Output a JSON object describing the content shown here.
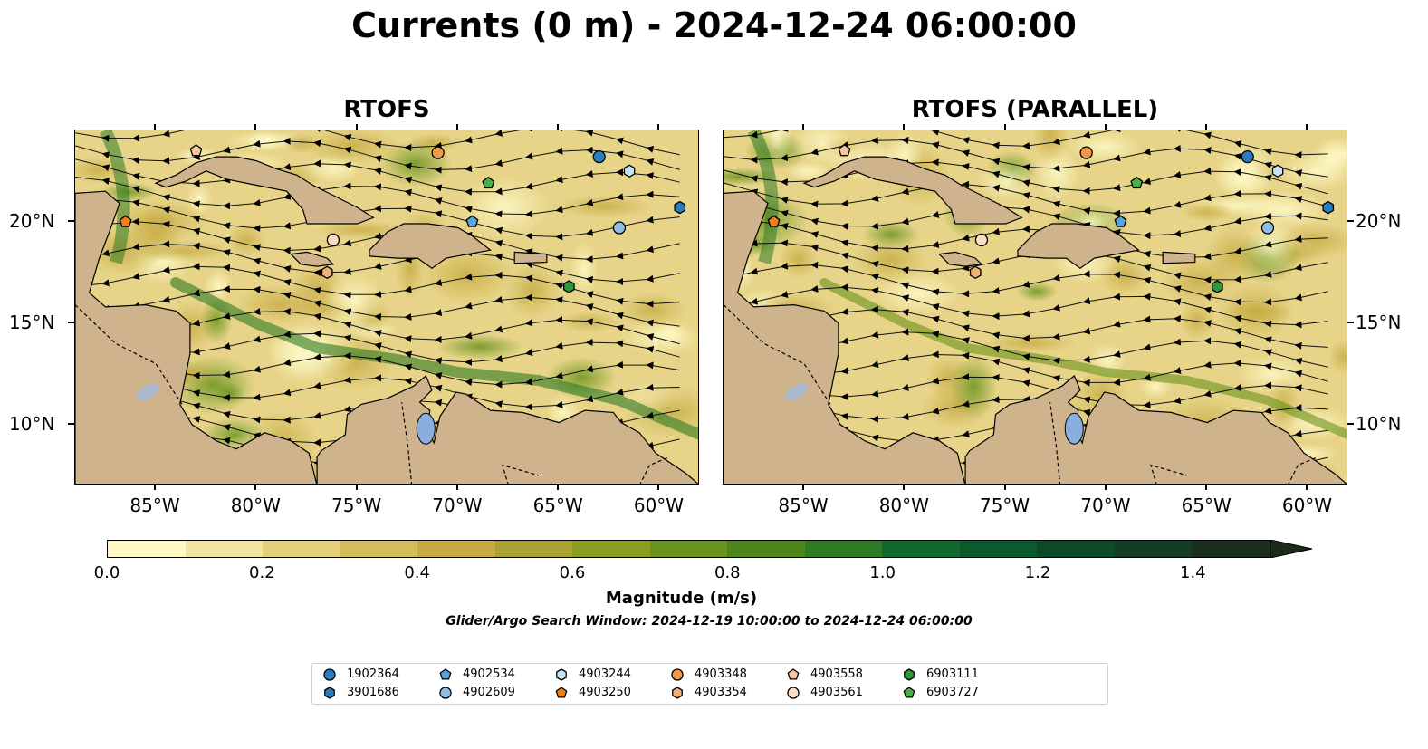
{
  "title": "Currents (0 m) - 2024-12-24 06:00:00",
  "panels": [
    {
      "title": "RTOFS"
    },
    {
      "title": "RTOFS (PARALLEL)"
    }
  ],
  "axes": {
    "x_ticks": [
      "85°W",
      "80°W",
      "75°W",
      "70°W",
      "65°W",
      "60°W"
    ],
    "y_ticks": [
      "20°N",
      "15°N",
      "10°N"
    ]
  },
  "colorbar": {
    "label": "Magnitude (m/s)",
    "ticks": [
      "0.0",
      "0.2",
      "0.4",
      "0.6",
      "0.8",
      "1.0",
      "1.2",
      "1.4"
    ],
    "colors": [
      "#fdf8c4",
      "#f1e3a0",
      "#e3cf7a",
      "#d4bc5a",
      "#c5ab42",
      "#a9a232",
      "#8a9f22",
      "#6a931e",
      "#4d861d",
      "#2f7a25",
      "#13682e",
      "#0b5a2d",
      "#0c4a28",
      "#133d24",
      "#1a2f1f",
      "#1b2a1a"
    ]
  },
  "search_window": "Glider/Argo Search Window: 2024-12-19 10:00:00 to 2024-12-24 06:00:00",
  "legend": [
    {
      "id": "1902364",
      "marker": "circle",
      "color": "#2b7bbf"
    },
    {
      "id": "3901686",
      "marker": "hexagon",
      "color": "#2b7bbf"
    },
    {
      "id": "4902534",
      "marker": "pentagon",
      "color": "#5aa4dc"
    },
    {
      "id": "4902609",
      "marker": "circle",
      "color": "#8fbfe6"
    },
    {
      "id": "4903244",
      "marker": "hexagon",
      "color": "#c7e1f5"
    },
    {
      "id": "4903250",
      "marker": "pentagon",
      "color": "#f07f1a"
    },
    {
      "id": "4903348",
      "marker": "circle",
      "color": "#f39748"
    },
    {
      "id": "4903354",
      "marker": "hexagon",
      "color": "#f5b078"
    },
    {
      "id": "4903558",
      "marker": "pentagon",
      "color": "#f7c6a0"
    },
    {
      "id": "4903561",
      "marker": "circle",
      "color": "#fbdcc2"
    },
    {
      "id": "6903111",
      "marker": "hexagon",
      "color": "#2e9b3a"
    },
    {
      "id": "6903727",
      "marker": "pentagon",
      "color": "#4cb04a"
    }
  ],
  "map_extent": {
    "lon": [
      -89,
      -58
    ],
    "lat": [
      7,
      24.5
    ]
  },
  "markers": [
    {
      "id": "4903558",
      "lon": -83,
      "lat": 23.5
    },
    {
      "id": "4903348",
      "lon": -71,
      "lat": 23.4
    },
    {
      "id": "1902364",
      "lon": -63,
      "lat": 23.2
    },
    {
      "id": "4903244",
      "lon": -61.5,
      "lat": 22.5
    },
    {
      "id": "6903727",
      "lon": -68.5,
      "lat": 21.9
    },
    {
      "id": "3901686",
      "lon": -59,
      "lat": 20.7
    },
    {
      "id": "4903250",
      "lon": -86.5,
      "lat": 20
    },
    {
      "id": "4902534",
      "lon": -69.3,
      "lat": 20
    },
    {
      "id": "4902609",
      "lon": -62,
      "lat": 19.7
    },
    {
      "id": "4903561",
      "lon": -76.2,
      "lat": 19.1
    },
    {
      "id": "4903354",
      "lon": -76.5,
      "lat": 17.5
    },
    {
      "id": "6903111",
      "lon": -64.5,
      "lat": 16.8
    }
  ]
}
